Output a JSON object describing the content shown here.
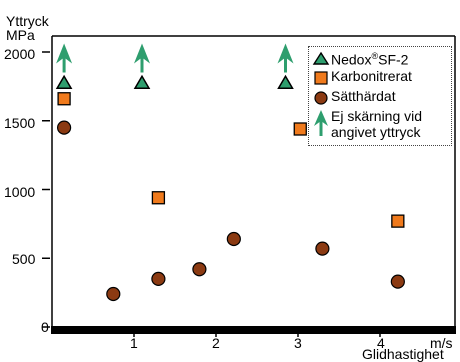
{
  "chart_data": {
    "type": "scatter",
    "title": "",
    "ylabel_lines": [
      "Yttryck",
      "MPa"
    ],
    "xlabel_unit": "m/s",
    "xlabel": "Glidhastighet",
    "xlim": [
      0,
      4.5
    ],
    "ylim": [
      0,
      2200
    ],
    "x_ticks": [
      "1",
      "2",
      "3",
      "4"
    ],
    "y_ticks": [
      "0",
      "500",
      "1000",
      "1500",
      "2000"
    ],
    "grid": false,
    "legend_position": "top-right",
    "series": [
      {
        "name": "Nedox SF-2",
        "name_superscript": "®",
        "name_prefix": "Nedox",
        "name_suffix": "SF-2",
        "marker": "triangle",
        "color": "#2e9e6e",
        "points": [
          [
            0.05,
            1780
          ],
          [
            1.0,
            1780
          ],
          [
            2.75,
            1780
          ]
        ]
      },
      {
        "name": "Karbonitrerat",
        "marker": "square",
        "color": "#f07a1c",
        "points": [
          [
            0.05,
            1660
          ],
          [
            1.2,
            940
          ],
          [
            2.93,
            1440
          ],
          [
            4.12,
            770
          ]
        ]
      },
      {
        "name": "Sätthärdat",
        "marker": "circle",
        "color": "#8b3a12",
        "points": [
          [
            0.05,
            1450
          ],
          [
            0.65,
            240
          ],
          [
            1.2,
            350
          ],
          [
            1.7,
            420
          ],
          [
            2.12,
            640
          ],
          [
            3.2,
            570
          ],
          [
            4.12,
            330
          ]
        ]
      },
      {
        "name": "Ej skärning vid angivet yttryck",
        "name_lines": [
          "Ej skärning vid",
          "angivet yttryck"
        ],
        "marker": "arrow-up",
        "color": "#2e9e6e",
        "points": [
          [
            0.05,
            1960
          ],
          [
            1.0,
            1960
          ],
          [
            2.75,
            1960
          ]
        ]
      }
    ]
  }
}
